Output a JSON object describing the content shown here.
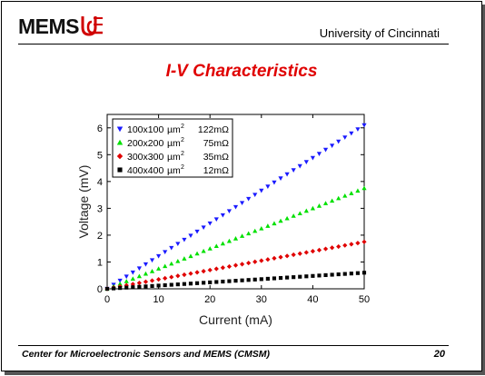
{
  "header": {
    "logo_text": "MEMS",
    "institution": "University of Cincinnati"
  },
  "slide": {
    "title": "I-V Characteristics",
    "footer": "Center for Microelectronic Sensors and MEMS (CMSM)",
    "page_number": "20"
  },
  "colors": {
    "title": "#e00000",
    "series_blue": "#1a1aff",
    "series_green": "#00e000",
    "series_red": "#e00000",
    "series_black": "#000000"
  },
  "chart_data": {
    "type": "scatter",
    "xlabel": "Current (mA)",
    "ylabel": "Voltage (mV)",
    "xlim": [
      0,
      50
    ],
    "ylim": [
      0,
      6.5
    ],
    "xticks": [
      0,
      10,
      20,
      30,
      40,
      50
    ],
    "yticks": [
      0,
      1,
      2,
      3,
      4,
      5,
      6
    ],
    "grid": false,
    "legend_position": "top-left",
    "series": [
      {
        "name": "100x100µm²  122mΩ",
        "size": "100x100",
        "resistance": "122mΩ",
        "marker": "triangle-down",
        "color": "#1a1aff",
        "slope": 0.122,
        "x_start": 0,
        "x_end": 50,
        "x_step": 1.25
      },
      {
        "name": "200x200µm²  75mΩ",
        "size": "200x200",
        "resistance": "75mΩ",
        "marker": "triangle-up",
        "color": "#00e000",
        "slope": 0.075,
        "x_start": 0,
        "x_end": 50,
        "x_step": 1.25
      },
      {
        "name": "300x300µm²  35mΩ",
        "size": "300x300",
        "resistance": "35mΩ",
        "marker": "diamond",
        "color": "#e00000",
        "slope": 0.035,
        "x_start": 0,
        "x_end": 50,
        "x_step": 1.25
      },
      {
        "name": "400x400µm²  12mΩ",
        "size": "400x400",
        "resistance": "12mΩ",
        "marker": "square",
        "color": "#000000",
        "slope": 0.012,
        "x_start": 0,
        "x_end": 50,
        "x_step": 1.25
      }
    ]
  }
}
